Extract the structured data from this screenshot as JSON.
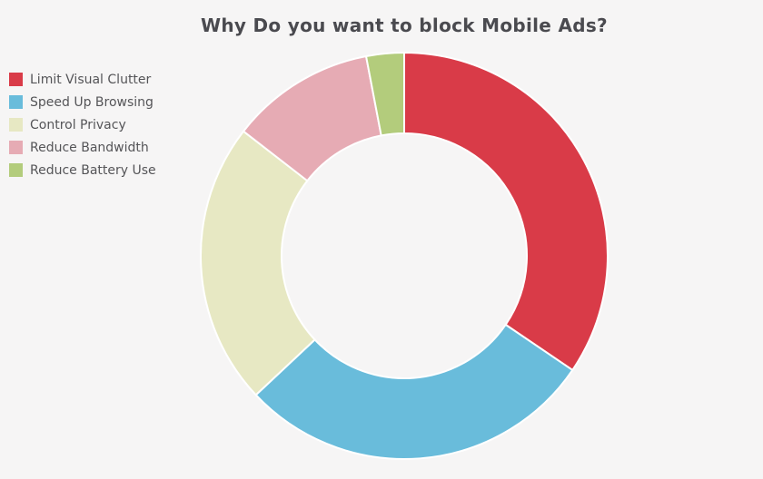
{
  "chart_data": {
    "type": "pie",
    "title": "Why Do you want to block Mobile Ads?",
    "categories": [
      "Limit Visual Clutter",
      "Speed Up Browsing",
      "Control Privacy",
      "Reduce Bandwidth",
      "Reduce Battery Use"
    ],
    "values": [
      34.5,
      28.5,
      22.5,
      11.5,
      3.0
    ],
    "colors": [
      "#d93b48",
      "#69bcdb",
      "#e7e8c3",
      "#e6abb4",
      "#b3cc7c"
    ],
    "legend_position": "left"
  }
}
